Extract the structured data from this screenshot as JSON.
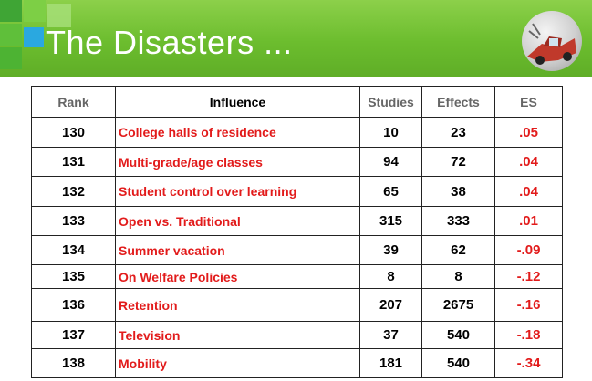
{
  "title": "The Disasters ...",
  "table": {
    "headers": [
      "Rank",
      "Influence",
      "Studies",
      "Effects",
      "ES"
    ],
    "rows": [
      {
        "rank": "130",
        "influence": "College halls of residence",
        "studies": "10",
        "effects": "23",
        "es": ".05"
      },
      {
        "rank": "131",
        "influence": "Multi-grade/age classes",
        "studies": "94",
        "effects": "72",
        "es": ".04"
      },
      {
        "rank": "132",
        "influence": "Student control over learning",
        "studies": "65",
        "effects": "38",
        "es": ".04"
      },
      {
        "rank": "133",
        "influence": "Open vs. Traditional",
        "studies": "315",
        "effects": "333",
        "es": ".01"
      },
      {
        "rank": "134",
        "influence": "Summer vacation",
        "studies": "39",
        "effects": "62",
        "es": "-.09"
      },
      {
        "rank": "135",
        "influence": "On Welfare Policies",
        "studies": "8",
        "effects": "8",
        "es": "-.12"
      },
      {
        "rank": "136",
        "influence": "Retention",
        "studies": "207",
        "effects": "2675",
        "es": "-.16"
      },
      {
        "rank": "137",
        "influence": "Television",
        "studies": "37",
        "effects": "540",
        "es": "-.18"
      },
      {
        "rank": "138",
        "influence": "Mobility",
        "studies": "181",
        "effects": "540",
        "es": "-.34"
      }
    ]
  },
  "colors": {
    "banner": "#6cbd2e",
    "accent_blue": "#2aa8e0",
    "highlight_red": "#e21b1b"
  },
  "icons": {
    "thumbnail": "car-crash-icon"
  }
}
